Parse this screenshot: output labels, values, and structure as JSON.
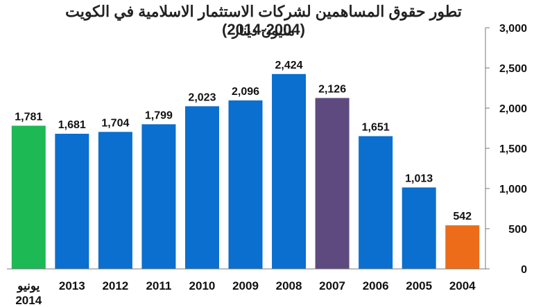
{
  "chart_data": {
    "type": "bar",
    "title": "تطور حقوق المساهمين لشركات الاستثمار الاسلامية في الكويت (2004-2014)",
    "subtitle": "مليون دينار",
    "categories": [
      [
        "يونيو",
        "2014"
      ],
      [
        "2013"
      ],
      [
        "2012"
      ],
      [
        "2011"
      ],
      [
        "2010"
      ],
      [
        "2009"
      ],
      [
        "2008"
      ],
      [
        "2007"
      ],
      [
        "2006"
      ],
      [
        "2005"
      ],
      [
        "2004"
      ]
    ],
    "values": [
      1781,
      1681,
      1704,
      1799,
      2023,
      2096,
      2424,
      2126,
      1651,
      1013,
      542
    ],
    "value_labels": [
      "1,781",
      "1,681",
      "1,704",
      "1,799",
      "2,023",
      "2,096",
      "2,424",
      "2,126",
      "1,651",
      "1,013",
      "542"
    ],
    "colors": [
      "#1db954",
      "#0a6fcf",
      "#0a6fcf",
      "#0a6fcf",
      "#0a6fcf",
      "#0a6fcf",
      "#0a6fcf",
      "#5e4a7e",
      "#0a6fcf",
      "#0a6fcf",
      "#ec6c1a"
    ],
    "ylim": [
      0,
      3000
    ],
    "yticks": [
      0,
      500,
      1000,
      1500,
      2000,
      2500,
      3000
    ],
    "ytick_labels": [
      "0",
      "500",
      "1,000",
      "1,500",
      "2,000",
      "2,500",
      "3,000"
    ],
    "yaxis_position": "right",
    "grid": false
  }
}
